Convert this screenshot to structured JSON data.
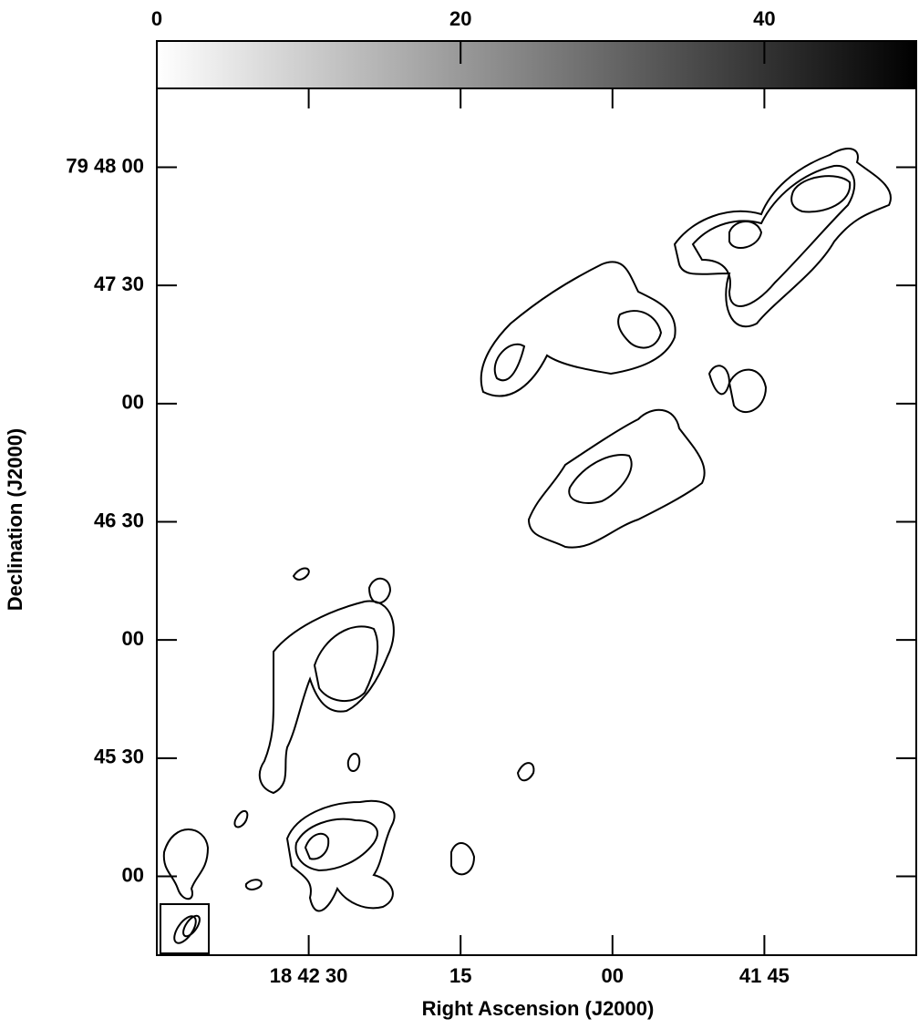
{
  "chart_data": {
    "type": "contour",
    "xlabel": "Right Ascension (J2000)",
    "ylabel": "Declination (J2000)",
    "xlim": [
      2565,
      2490
    ],
    "xticks": [
      {
        "value": 2550,
        "label": "18 42 30"
      },
      {
        "value": 2535,
        "label": "15"
      },
      {
        "value": 2520,
        "label": "00"
      },
      {
        "value": 2505,
        "label": "41 45"
      }
    ],
    "ylim": [
      287080,
      287300
    ],
    "yticks": [
      {
        "value": 287280,
        "label": "79 48 00"
      },
      {
        "value": 287250,
        "label": "47 30"
      },
      {
        "value": 287220,
        "label": "00"
      },
      {
        "value": 287190,
        "label": "46 30"
      },
      {
        "value": 287160,
        "label": "00"
      },
      {
        "value": 287130,
        "label": "45 30"
      },
      {
        "value": 287100,
        "label": "00"
      }
    ],
    "colorbar": {
      "lim": [
        0,
        50
      ],
      "ticks": [
        0,
        20,
        40
      ],
      "colors": [
        "#ffffff",
        "#000000"
      ]
    }
  }
}
